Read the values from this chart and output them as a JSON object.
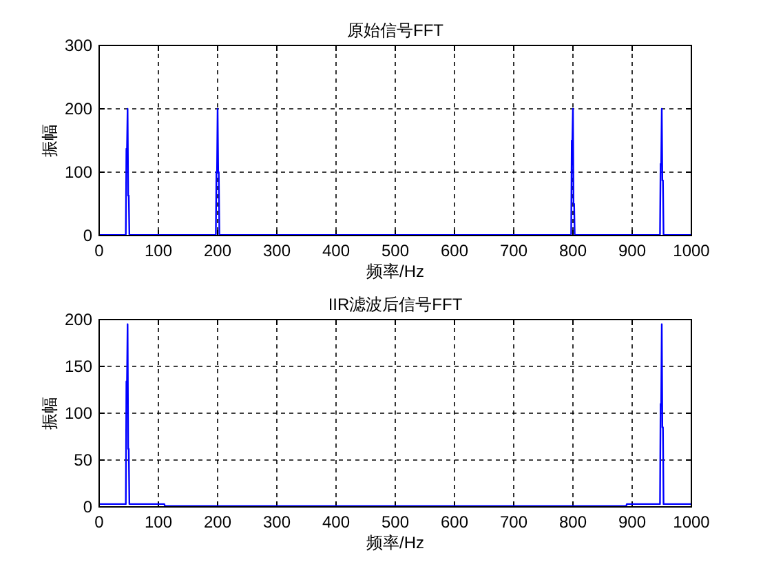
{
  "chart_data": [
    {
      "type": "line",
      "title": "原始信号FFT",
      "xlabel": "频率/Hz",
      "ylabel": "振幅",
      "xlim": [
        0,
        1000
      ],
      "ylim": [
        0,
        300
      ],
      "xticks": [
        0,
        100,
        200,
        300,
        400,
        500,
        600,
        700,
        800,
        900,
        1000
      ],
      "yticks": [
        0,
        100,
        200,
        300
      ],
      "grid": true,
      "series": [
        {
          "color": "#0000ff",
          "x": [
            0,
            45,
            46,
            47,
            48,
            49,
            50,
            51,
            197,
            198,
            199,
            200,
            201,
            202,
            203,
            797,
            798,
            799,
            800,
            801,
            802,
            803,
            947,
            948,
            949,
            950,
            951,
            952,
            953,
            1000
          ],
          "values": [
            1,
            1,
            137,
            137,
            200,
            63,
            63,
            1,
            1,
            100,
            100,
            200,
            100,
            100,
            1,
            1,
            150,
            150,
            200,
            50,
            50,
            1,
            1,
            113,
            113,
            200,
            87,
            87,
            1,
            1
          ]
        }
      ]
    },
    {
      "type": "line",
      "title": "IIR滤波后信号FFT",
      "xlabel": "频率/Hz",
      "ylabel": "振幅",
      "xlim": [
        0,
        1000
      ],
      "ylim": [
        0,
        200
      ],
      "xticks": [
        0,
        100,
        200,
        300,
        400,
        500,
        600,
        700,
        800,
        900,
        1000
      ],
      "yticks": [
        0,
        50,
        100,
        150,
        200
      ],
      "grid": true,
      "series": [
        {
          "color": "#0000ff",
          "x": [
            0,
            45,
            46,
            47,
            48,
            49,
            50,
            51,
            110,
            111,
            890,
            891,
            947,
            948,
            949,
            950,
            951,
            952,
            953,
            1000
          ],
          "values": [
            3,
            3,
            134,
            134,
            195,
            62,
            62,
            3,
            3,
            1,
            1,
            3,
            3,
            110,
            110,
            195,
            85,
            85,
            3,
            3
          ]
        }
      ]
    }
  ]
}
